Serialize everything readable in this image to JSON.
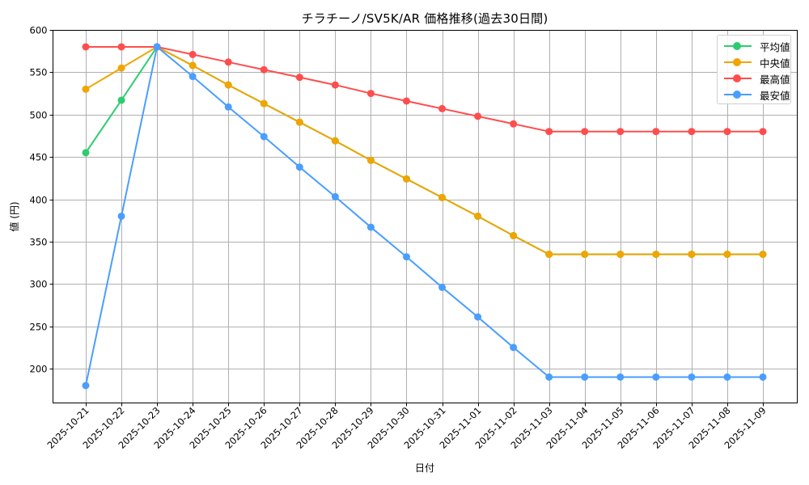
{
  "chart_data": {
    "type": "line",
    "title": "チラチーノ/SV5K/AR 価格推移(過去30日間)",
    "xlabel": "日付",
    "ylabel": "値 (円)",
    "ylim": [
      160,
      600
    ],
    "yticks": [
      200,
      250,
      300,
      350,
      400,
      450,
      500,
      550,
      600
    ],
    "grid": true,
    "legend_position": "upper right",
    "x": [
      "2025-10-21",
      "2025-10-22",
      "2025-10-23",
      "2025-10-24",
      "2025-10-25",
      "2025-10-26",
      "2025-10-27",
      "2025-10-28",
      "2025-10-29",
      "2025-10-30",
      "2025-10-31",
      "2025-11-01",
      "2025-11-02",
      "2025-11-03",
      "2025-11-04",
      "2025-11-05",
      "2025-11-06",
      "2025-11-07",
      "2025-11-08",
      "2025-11-09"
    ],
    "series": [
      {
        "name": "平均値",
        "color": "#2ecc71",
        "values": [
          455,
          517,
          580,
          558,
          535,
          513,
          491,
          469,
          446,
          424,
          402,
          380,
          357,
          335,
          335,
          335,
          335,
          335,
          335,
          335
        ]
      },
      {
        "name": "中央値",
        "color": "#f0a500",
        "values": [
          530,
          555,
          580,
          558,
          535,
          513,
          491,
          469,
          446,
          424,
          402,
          380,
          357,
          335,
          335,
          335,
          335,
          335,
          335,
          335
        ]
      },
      {
        "name": "最高値",
        "color": "#ff4d4d",
        "values": [
          580,
          580,
          580,
          571,
          562,
          553,
          544,
          535,
          525,
          516,
          507,
          498,
          489,
          480,
          480,
          480,
          480,
          480,
          480,
          480
        ]
      },
      {
        "name": "最安値",
        "color": "#4a9eff",
        "values": [
          180,
          380,
          580,
          545,
          509,
          474,
          438,
          403,
          367,
          332,
          296,
          261,
          225,
          190,
          190,
          190,
          190,
          190,
          190,
          190
        ]
      }
    ]
  },
  "legend": {
    "items": [
      {
        "label": "平均値",
        "color": "#2ecc71"
      },
      {
        "label": "中央値",
        "color": "#f0a500"
      },
      {
        "label": "最高値",
        "color": "#ff4d4d"
      },
      {
        "label": "最安値",
        "color": "#4a9eff"
      }
    ]
  }
}
